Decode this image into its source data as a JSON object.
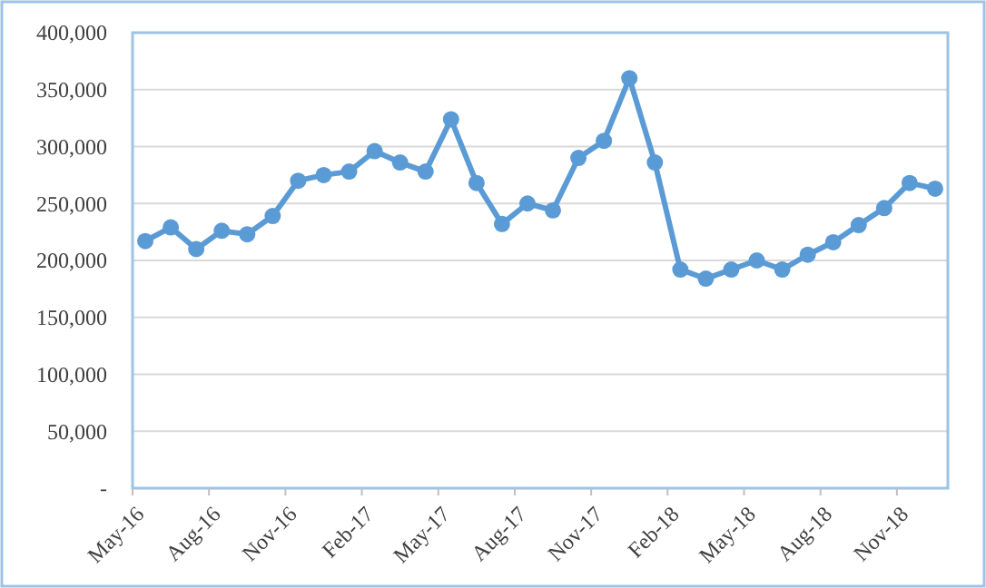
{
  "chart_data": {
    "type": "line",
    "categories": [
      "May-16",
      null,
      null,
      "Aug-16",
      null,
      null,
      "Nov-16",
      null,
      null,
      "Feb-17",
      null,
      null,
      "May-17",
      null,
      null,
      "Aug-17",
      null,
      null,
      "Nov-17",
      null,
      null,
      "Feb-18",
      null,
      null,
      "May-18",
      null,
      null,
      "Aug-18",
      null,
      null,
      "Nov-18",
      null
    ],
    "series": [
      {
        "color": "#5b9bd5",
        "values": [
          217000,
          229000,
          210000,
          226000,
          223000,
          239000,
          270000,
          275000,
          278000,
          296000,
          286000,
          278000,
          324000,
          268000,
          232000,
          250000,
          244000,
          290000,
          305000,
          360000,
          286000,
          192000,
          184000,
          192000,
          200000,
          192000,
          205000,
          216000,
          231000,
          246000,
          268000,
          263000
        ]
      }
    ],
    "ylim": [
      0,
      400000
    ],
    "yticks": [
      {
        "value": 0,
        "label": "-"
      },
      {
        "value": 50000,
        "label": "50,000"
      },
      {
        "value": 100000,
        "label": "100,000"
      },
      {
        "value": 150000,
        "label": "150,000"
      },
      {
        "value": 200000,
        "label": "200,000"
      },
      {
        "value": 250000,
        "label": "250,000"
      },
      {
        "value": 300000,
        "label": "300,000"
      },
      {
        "value": 350000,
        "label": "350,000"
      },
      {
        "value": 400000,
        "label": "400,000"
      }
    ],
    "grid": "y",
    "marker": "circle",
    "line_style": "solid"
  }
}
